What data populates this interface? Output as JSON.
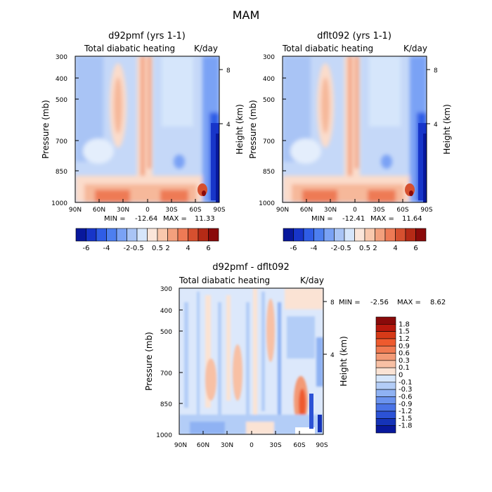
{
  "main_title": "MAM",
  "colors": {
    "dark_blue": "#08189c",
    "blue": "#2f5de6",
    "light_blue": "#a9c4f5",
    "pale_blue": "#d6e6fb",
    "peach": "#fbdccb",
    "orange": "#ee7a55",
    "dark_red": "#8a0a0a"
  },
  "chart_data": [
    {
      "type": "heatmap",
      "title": "d92pmf (yrs 1-1)",
      "left_subtitle": "Total diabatic heating",
      "right_subtitle": "K/day",
      "xlabel": "",
      "ylabel": "Pressure (mb)",
      "y2label": "Height (km)",
      "x_ticks": [
        "90N",
        "60N",
        "30N",
        "0",
        "30S",
        "60S",
        "90S"
      ],
      "y_ticks": [
        "300",
        "400",
        "500",
        "700",
        "850",
        "1000"
      ],
      "y2_ticks": [
        "8",
        "4"
      ],
      "stats": {
        "min_label": "MIN =",
        "min": "-12.64",
        "max_label": "MAX =",
        "max": "11.33"
      }
    },
    {
      "type": "heatmap",
      "title": "dflt092 (yrs 1-1)",
      "left_subtitle": "Total diabatic heating",
      "right_subtitle": "K/day",
      "xlabel": "",
      "ylabel": "Pressure (mb)",
      "y2label": "Height (km)",
      "x_ticks": [
        "90N",
        "60N",
        "30N",
        "0",
        "30S",
        "60S",
        "90S"
      ],
      "y_ticks": [
        "300",
        "400",
        "500",
        "700",
        "850",
        "1000"
      ],
      "y2_ticks": [
        "8",
        "4"
      ],
      "stats": {
        "min_label": "MIN =",
        "min": "-12.41",
        "max_label": "MAX =",
        "max": "11.64"
      }
    },
    {
      "type": "heatmap",
      "title": "d92pmf - dflt092",
      "left_subtitle": "Total diabatic heating",
      "right_subtitle": "K/day",
      "xlabel": "",
      "ylabel": "Pressure (mb)",
      "y2label": "Height (km)",
      "x_ticks": [
        "90N",
        "60N",
        "30N",
        "0",
        "30S",
        "60S",
        "90S"
      ],
      "y_ticks": [
        "300",
        "400",
        "500",
        "700",
        "850",
        "1000"
      ],
      "y2_ticks": [
        "8",
        "4"
      ],
      "stats": {
        "min_label": "MIN =",
        "min": "-2.56",
        "max_label": "MAX =",
        "max": "8.62"
      }
    }
  ],
  "colorbar_main": {
    "labels": [
      "-6",
      "-4",
      "-2",
      "-0.5",
      "0.5",
      "2",
      "4",
      "6"
    ],
    "colors": [
      "#08189c",
      "#1735c9",
      "#2f5de6",
      "#4d7ff0",
      "#7aa2f5",
      "#a9c4f5",
      "#d6e6fb",
      "#fbe6da",
      "#f9c8ad",
      "#f3a07d",
      "#ee7a55",
      "#d6502f",
      "#b52a16",
      "#8a0a0a"
    ]
  },
  "colorbar_diff": {
    "labels": [
      "1.8",
      "1.5",
      "1.2",
      "0.9",
      "0.6",
      "0.3",
      "0.1",
      "0",
      "-0.1",
      "-0.3",
      "-0.6",
      "-0.9",
      "-1.2",
      "-1.5",
      "-1.8"
    ],
    "colors": [
      "#8a0a0a",
      "#b8180d",
      "#d63a18",
      "#ee5a2e",
      "#f07a52",
      "#f39a76",
      "#f8c0a4",
      "#fbe3d4",
      "#d6e6fb",
      "#b3cdf7",
      "#8fb2f3",
      "#6b93ee",
      "#4a73e6",
      "#2c52d6",
      "#1533b8",
      "#08189c"
    ]
  }
}
